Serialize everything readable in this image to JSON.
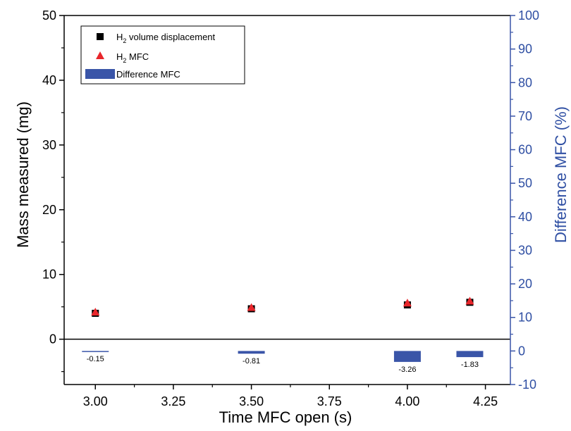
{
  "chart_data": {
    "type": "scatter",
    "xlabel": "Time MFC open (s)",
    "ylabel": "Mass measured (mg)",
    "y2label": "Difference MFC (%)",
    "xlim": [
      2.9,
      4.33
    ],
    "ylim": [
      -7,
      50
    ],
    "y2lim": [
      -10,
      100
    ],
    "x_ticks": [
      "3.00",
      "3.25",
      "3.50",
      "3.75",
      "4.00",
      "4.25"
    ],
    "y_ticks": [
      "0",
      "10",
      "20",
      "30",
      "40",
      "50"
    ],
    "y2_ticks": [
      "-10",
      "0",
      "10",
      "20",
      "30",
      "40",
      "50",
      "60",
      "70",
      "80",
      "90",
      "100"
    ],
    "grid": false,
    "legend_position": "top-left",
    "series": [
      {
        "name_main": "H",
        "name_sub": "2",
        "name_rest": " volume displacement",
        "marker": "square",
        "color": "#000000",
        "axis": "left",
        "x": [
          3.0,
          3.5,
          4.0,
          4.2
        ],
        "y": [
          4.0,
          4.7,
          5.3,
          5.7
        ]
      },
      {
        "name_main": "H",
        "name_sub": "2",
        "name_rest": " MFC",
        "marker": "triangle",
        "color": "#e8262b",
        "axis": "left",
        "x": [
          3.0,
          3.5,
          4.0,
          4.2
        ],
        "y": [
          4.1,
          4.8,
          5.5,
          5.8
        ]
      },
      {
        "name_main": "Difference MFC",
        "name_sub": "",
        "name_rest": "",
        "marker": "bar",
        "color": "#3a55a8",
        "axis": "right",
        "x": [
          3.0,
          3.5,
          4.0,
          4.2
        ],
        "y": [
          -0.15,
          -0.81,
          -3.26,
          -1.83
        ],
        "labels": [
          "-0.15",
          "-0.81",
          "-3.26",
          "-1.83"
        ]
      }
    ]
  }
}
